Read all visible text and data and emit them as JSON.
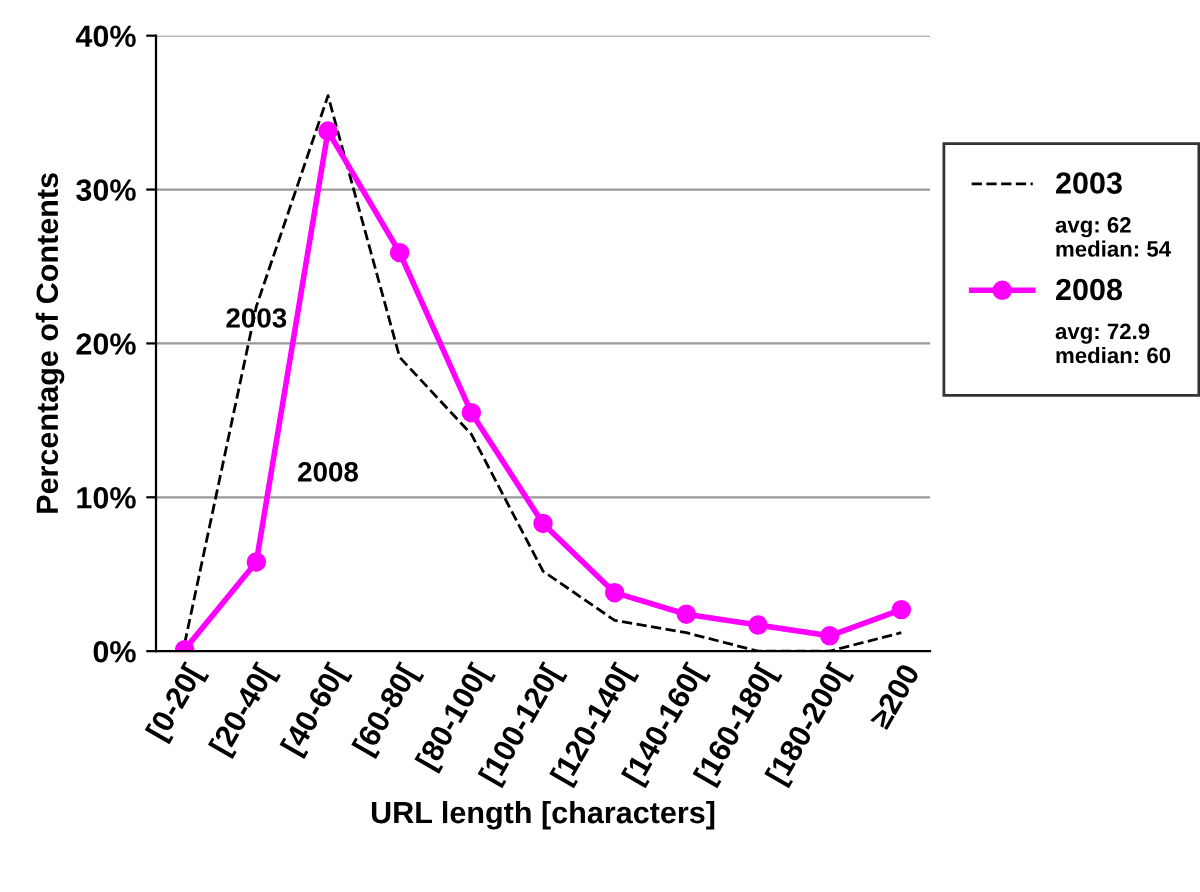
{
  "chart_data": {
    "type": "line",
    "xlabel": "URL length [characters]",
    "ylabel": "Percentage of Contents",
    "categories": [
      "[0-20[",
      "[20-40[",
      "[40-60[",
      "[60-80[",
      "[80-100[",
      "[100-120[",
      "[120-140[",
      "[140-160[",
      "[160-180[",
      "[180-200[",
      "≥200"
    ],
    "series": [
      {
        "name": "2003",
        "color": "#000000",
        "line_style": "dashed",
        "marker": "none",
        "values": [
          0.5,
          22.4,
          36.1,
          19.1,
          14.1,
          5.2,
          2.0,
          1.2,
          0,
          0,
          1.2
        ]
      },
      {
        "name": "2008",
        "color": "#ff00ff",
        "line_style": "solid",
        "marker": "circle",
        "values": [
          0.1,
          5.8,
          33.8,
          25.9,
          15.5,
          8.3,
          3.8,
          2.4,
          1.7,
          1.0,
          2.7
        ]
      }
    ],
    "ylim": [
      0,
      40
    ],
    "yticks": [
      {
        "value": 0,
        "label": "0%"
      },
      {
        "value": 10,
        "label": "10%"
      },
      {
        "value": 20,
        "label": "20%"
      },
      {
        "value": 30,
        "label": "30%"
      },
      {
        "value": 40,
        "label": "40%"
      }
    ],
    "grid": "y",
    "legend": "right",
    "annotations": [
      "avg: 62\nmedian: 54",
      "avg: 72.9\nmedian: 60",
      "2003",
      "2008"
    ]
  }
}
